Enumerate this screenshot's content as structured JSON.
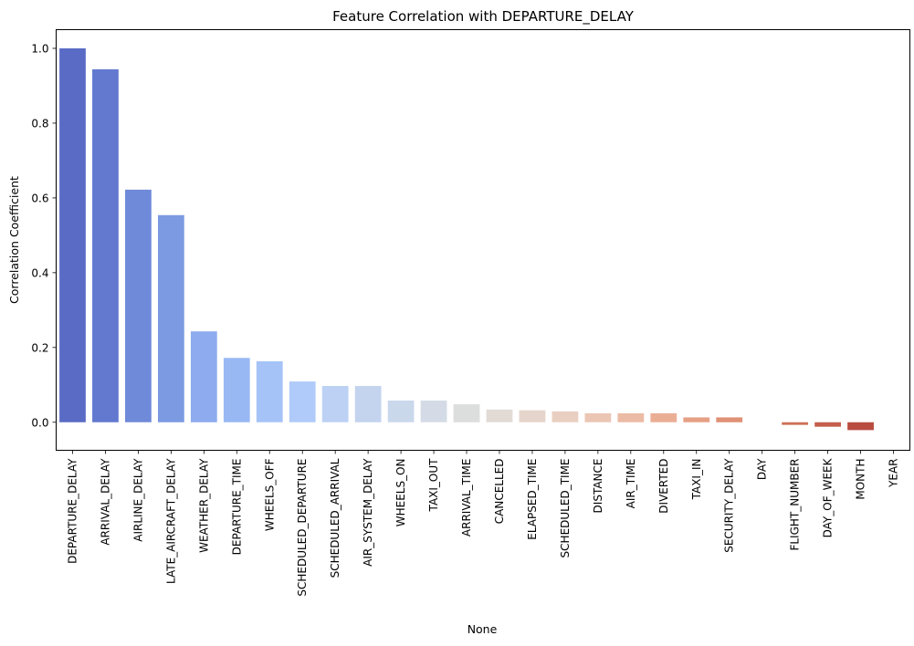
{
  "chart_data": {
    "type": "bar",
    "title": "Feature Correlation with DEPARTURE_DELAY",
    "xlabel": "None",
    "ylabel": "Correlation Coefficient",
    "ylim": [
      -0.075,
      1.05
    ],
    "yticks": [
      0.0,
      0.2,
      0.4,
      0.6,
      0.8,
      1.0
    ],
    "ytick_labels": [
      "0.0",
      "0.2",
      "0.4",
      "0.6",
      "0.8",
      "1.0"
    ],
    "grid": false,
    "legend": "none",
    "colormap": "coolwarm",
    "categories": [
      "DEPARTURE_DELAY",
      "ARRIVAL_DELAY",
      "AIRLINE_DELAY",
      "LATE_AIRCRAFT_DELAY",
      "WEATHER_DELAY",
      "DEPARTURE_TIME",
      "WHEELS_OFF",
      "SCHEDULED_DEPARTURE",
      "SCHEDULED_ARRIVAL",
      "AIR_SYSTEM_DELAY",
      "WHEELS_ON",
      "TAXI_OUT",
      "ARRIVAL_TIME",
      "CANCELLED",
      "ELAPSED_TIME",
      "SCHEDULED_TIME",
      "DISTANCE",
      "AIR_TIME",
      "DIVERTED",
      "TAXI_IN",
      "SECURITY_DELAY",
      "DAY",
      "FLIGHT_NUMBER",
      "DAY_OF_WEEK",
      "MONTH",
      "YEAR"
    ],
    "values": [
      1.0,
      0.944,
      0.622,
      0.554,
      0.243,
      0.172,
      0.163,
      0.109,
      0.097,
      0.097,
      0.058,
      0.058,
      0.048,
      0.034,
      0.032,
      0.029,
      0.024,
      0.024,
      0.024,
      0.013,
      0.013,
      0.0,
      -0.007,
      -0.012,
      -0.021,
      0.0
    ],
    "colors": [
      "#5a6bc5",
      "#6279cf",
      "#6f8ad9",
      "#7b9ae2",
      "#8dabee",
      "#98b8f4",
      "#a5c3f7",
      "#b0cbf9",
      "#bcd1f4",
      "#c4d4ef",
      "#cad8ec",
      "#d4dbe6",
      "#dcdddd",
      "#e2dad5",
      "#e6d5cc",
      "#e9cfc2",
      "#ebc6b4",
      "#ecbba5",
      "#eaae95",
      "#e6a085",
      "#df9075",
      "#d68066",
      "#cd7058",
      "#c35f4c",
      "#b84c40",
      "#b40426"
    ]
  }
}
